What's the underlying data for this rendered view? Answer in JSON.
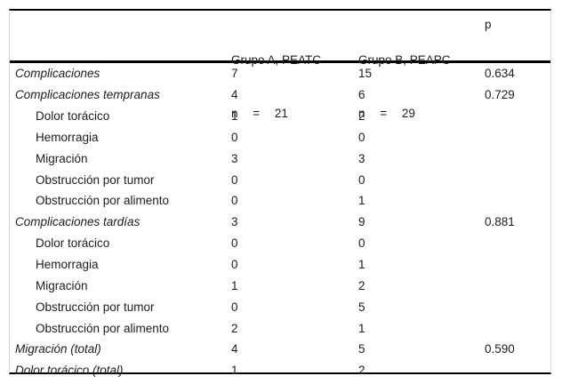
{
  "table": {
    "header": {
      "group_a_line1": "Grupo A, PEATC",
      "group_a_line2": "n = 21",
      "group_b_line1": "Grupo B, PEAPC",
      "group_b_line2": "n = 29",
      "p_label": "p"
    },
    "rows": [
      {
        "label": "Complicaciones",
        "emphasis": "italic",
        "indent": 0,
        "group_a": "7",
        "group_b": "15",
        "p": "0.634"
      },
      {
        "label": "Complicaciones tempranas",
        "emphasis": "italic",
        "indent": 0,
        "group_a": "4",
        "group_b": "6",
        "p": "0.729"
      },
      {
        "label": "Dolor torácico",
        "emphasis": "normal",
        "indent": 1,
        "group_a": "1",
        "group_b": "2",
        "p": ""
      },
      {
        "label": "Hemorragia",
        "emphasis": "normal",
        "indent": 1,
        "group_a": "0",
        "group_b": "0",
        "p": ""
      },
      {
        "label": "Migración",
        "emphasis": "normal",
        "indent": 1,
        "group_a": "3",
        "group_b": "3",
        "p": ""
      },
      {
        "label": "Obstrucción por tumor",
        "emphasis": "normal",
        "indent": 1,
        "group_a": "0",
        "group_b": "0",
        "p": ""
      },
      {
        "label": "Obstrucción por alimento",
        "emphasis": "normal",
        "indent": 1,
        "group_a": "0",
        "group_b": "1",
        "p": ""
      },
      {
        "label": "Complicaciones tardías",
        "emphasis": "italic",
        "indent": 0,
        "group_a": "3",
        "group_b": "9",
        "p": "0.881"
      },
      {
        "label": "Dolor torácico",
        "emphasis": "normal",
        "indent": 1,
        "group_a": "0",
        "group_b": "0",
        "p": ""
      },
      {
        "label": "Hemorragia",
        "emphasis": "normal",
        "indent": 1,
        "group_a": "0",
        "group_b": "1",
        "p": ""
      },
      {
        "label": "Migración",
        "emphasis": "normal",
        "indent": 1,
        "group_a": "1",
        "group_b": "2",
        "p": ""
      },
      {
        "label": "Obstrucción por tumor",
        "emphasis": "normal",
        "indent": 1,
        "group_a": "0",
        "group_b": "5",
        "p": ""
      },
      {
        "label": "Obstrucción por alimento",
        "emphasis": "normal",
        "indent": 1,
        "group_a": "2",
        "group_b": "1",
        "p": ""
      },
      {
        "label": "Migración (total)",
        "emphasis": "italic",
        "indent": 0,
        "group_a": "4",
        "group_b": "5",
        "p": "0.590"
      },
      {
        "label": "Dolor torácico (total)",
        "emphasis": "italic",
        "indent": 0,
        "group_a": "1",
        "group_b": "2",
        "p": ""
      }
    ],
    "colors": {
      "text": "#1c1c1c",
      "rule": "#000000",
      "side_border": "#d9d9d9",
      "background": "#ffffff"
    }
  }
}
